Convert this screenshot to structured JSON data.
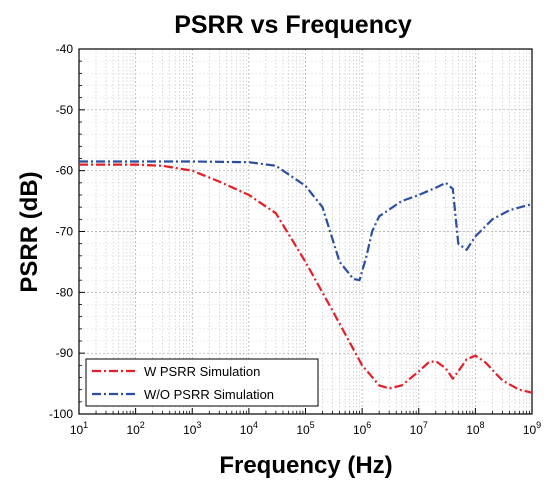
{
  "chart_data": {
    "type": "line",
    "title": "PSRR vs Frequency",
    "xlabel": "Frequency (Hz)",
    "ylabel": "PSRR (dB)",
    "xscale": "log",
    "xlim": [
      10,
      1000000000
    ],
    "ylim": [
      -100,
      -40
    ],
    "grid": true,
    "legend_position": "bottom-left",
    "x_ticks": [
      {
        "value": 10,
        "base": "10",
        "exp": "1"
      },
      {
        "value": 100,
        "base": "10",
        "exp": "2"
      },
      {
        "value": 1000,
        "base": "10",
        "exp": "3"
      },
      {
        "value": 10000,
        "base": "10",
        "exp": "4"
      },
      {
        "value": 100000,
        "base": "10",
        "exp": "5"
      },
      {
        "value": 1000000,
        "base": "10",
        "exp": "6"
      },
      {
        "value": 10000000,
        "base": "10",
        "exp": "7"
      },
      {
        "value": 100000000,
        "base": "10",
        "exp": "8"
      },
      {
        "value": 1000000000,
        "base": "10",
        "exp": "9"
      }
    ],
    "y_ticks": [
      {
        "value": -40,
        "label": "-40"
      },
      {
        "value": -50,
        "label": "-50"
      },
      {
        "value": -60,
        "label": "-60"
      },
      {
        "value": -70,
        "label": "-70"
      },
      {
        "value": -80,
        "label": "-80"
      },
      {
        "value": -90,
        "label": "-90"
      },
      {
        "value": -100,
        "label": "-100"
      }
    ],
    "series": [
      {
        "name": "W PSRR Simulation",
        "color": "#e41e26",
        "points": [
          [
            10,
            -59
          ],
          [
            100,
            -59
          ],
          [
            300,
            -59.2
          ],
          [
            1000,
            -60
          ],
          [
            3000,
            -61.8
          ],
          [
            10000,
            -64
          ],
          [
            30000,
            -67
          ],
          [
            100000,
            -75
          ],
          [
            300000,
            -83
          ],
          [
            1000000,
            -92
          ],
          [
            2000000,
            -95.3
          ],
          [
            3000000,
            -95.8
          ],
          [
            5000000,
            -95.3
          ],
          [
            10000000,
            -93
          ],
          [
            15000000,
            -91.5
          ],
          [
            20000000,
            -91.3
          ],
          [
            30000000,
            -92.5
          ],
          [
            40000000,
            -94.2
          ],
          [
            50000000,
            -93
          ],
          [
            70000000,
            -91
          ],
          [
            100000000,
            -90.4
          ],
          [
            150000000,
            -91.5
          ],
          [
            300000000,
            -94.5
          ],
          [
            600000000,
            -96
          ],
          [
            1000000000,
            -96.5
          ]
        ]
      },
      {
        "name": "W/O PSRR Simulation",
        "color": "#2a4ea0",
        "points": [
          [
            10,
            -58.5
          ],
          [
            100,
            -58.5
          ],
          [
            1000,
            -58.5
          ],
          [
            10000,
            -58.6
          ],
          [
            30000,
            -59.2
          ],
          [
            100000,
            -62.5
          ],
          [
            200000,
            -66
          ],
          [
            400000,
            -75
          ],
          [
            700000,
            -77.8
          ],
          [
            900000,
            -78
          ],
          [
            1200000,
            -74
          ],
          [
            1500000,
            -70
          ],
          [
            2000000,
            -67.5
          ],
          [
            5000000,
            -65
          ],
          [
            10000000,
            -64
          ],
          [
            20000000,
            -62.8
          ],
          [
            30000000,
            -62
          ],
          [
            40000000,
            -63
          ],
          [
            50000000,
            -72
          ],
          [
            70000000,
            -73
          ],
          [
            100000000,
            -70.8
          ],
          [
            200000000,
            -68
          ],
          [
            400000000,
            -66.5
          ],
          [
            1000000000,
            -65.5
          ]
        ]
      }
    ]
  }
}
